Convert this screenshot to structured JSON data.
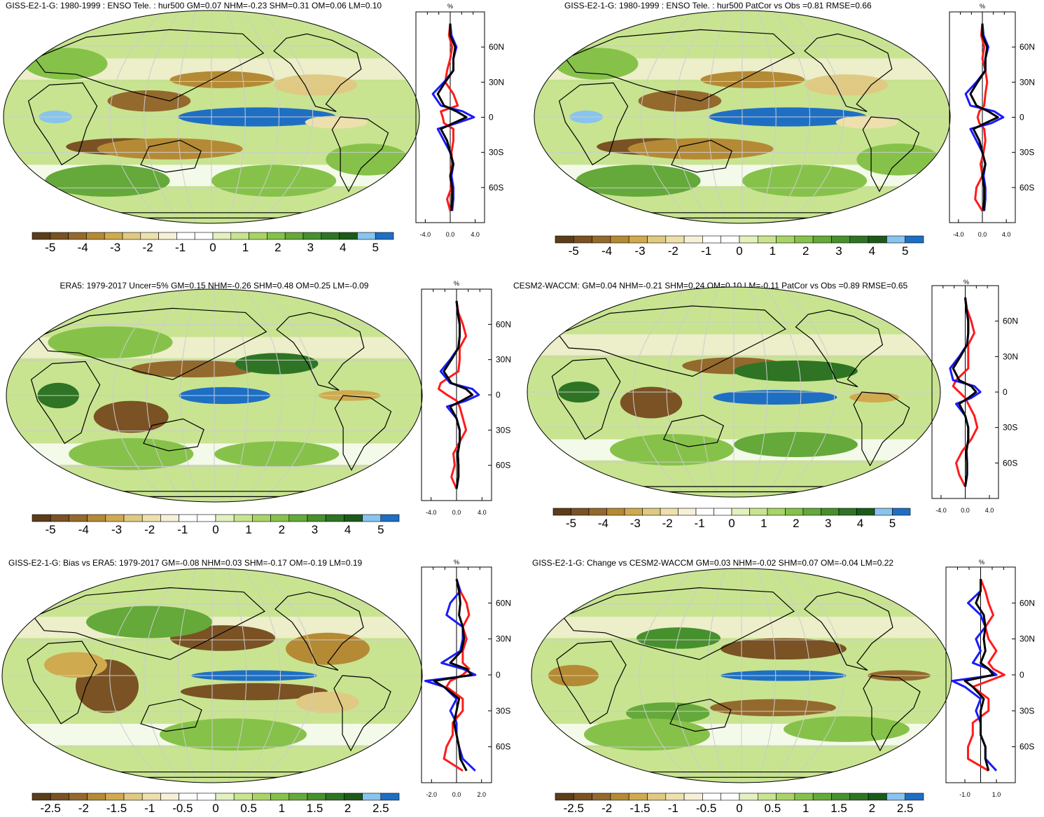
{
  "colors": {
    "continents": "#000000",
    "ocean_graticule": "#cccccc",
    "series_red": "#ff1a1a",
    "series_blue": "#1a1aff",
    "series_black": "#000000",
    "palette": [
      "#5c3d1a",
      "#7a5224",
      "#94692d",
      "#b58a35",
      "#cfaa4f",
      "#e0c982",
      "#ede0ad",
      "#f6f0d8",
      "#ffffff",
      "#ffffff",
      "#e3f0c0",
      "#c8e490",
      "#a8d466",
      "#86c24a",
      "#64a93a",
      "#47902e",
      "#2e7424",
      "#1c5a1a",
      "#88c4ee",
      "#1e6fc4"
    ]
  },
  "panels": [
    {
      "title": "GISS-E2-1-G: 1980-1999 : ENSO Tele. : hur500 GM=0.07 NHM=-0.23 SHM=0.31 OM=0.06 LM=0.10",
      "colorbar_labels": [
        "-5",
        "-4",
        "-3",
        "-2",
        "-1",
        "0",
        "1",
        "2",
        "3",
        "4",
        "5"
      ],
      "zonal_unit": "%",
      "zonal_xticks": [
        "-4.0",
        "0.0",
        "4.0"
      ],
      "zonal_xlim": [
        -5.5,
        5.5
      ],
      "zonal_yticks": [
        "60N",
        "30N",
        "0",
        "30S",
        "60S"
      ]
    },
    {
      "title": "GISS-E2-1-G: 1980-1999 : ENSO Tele. : hur500 PatCor vs Obs =0.81 RMSE=0.66",
      "colorbar_labels": [
        "-5",
        "-4",
        "-3",
        "-2",
        "-1",
        "0",
        "1",
        "2",
        "3",
        "4",
        "5"
      ],
      "zonal_unit": "%",
      "zonal_xticks": [
        "-4.0",
        "0.0",
        "4.0"
      ],
      "zonal_xlim": [
        -5.5,
        5.5
      ],
      "zonal_yticks": [
        "60N",
        "30N",
        "0",
        "30S",
        "60S"
      ]
    },
    {
      "title": "ERA5: 1979-2017 Uncer=5% GM=0.15 NHM=-0.26 SHM=0.48 OM=0.25 LM=-0.09",
      "colorbar_labels": [
        "-5",
        "-4",
        "-3",
        "-2",
        "-1",
        "0",
        "1",
        "2",
        "3",
        "4",
        "5"
      ],
      "zonal_unit": "%",
      "zonal_xticks": [
        "-4.0",
        "0.0",
        "4.0"
      ],
      "zonal_xlim": [
        -5.5,
        5.5
      ],
      "zonal_yticks": [
        "60N",
        "30N",
        "0",
        "30S",
        "60S"
      ]
    },
    {
      "title": "CESM2-WACCM: GM=0.04 NHM=-0.21 SHM=0.24 OM=0.10 LM=-0.11 PatCor vs Obs =0.89 RMSE=0.65",
      "colorbar_labels": [
        "-5",
        "-4",
        "-3",
        "-2",
        "-1",
        "0",
        "1",
        "2",
        "3",
        "4",
        "5"
      ],
      "zonal_unit": "%",
      "zonal_xticks": [
        "-4.0",
        "0.0",
        "4.0"
      ],
      "zonal_xlim": [
        -5.5,
        5.5
      ],
      "zonal_yticks": [
        "60N",
        "30N",
        "0",
        "30S",
        "60S"
      ]
    },
    {
      "title": "GISS-E2-1-G: Bias vs ERA5: 1979-2017 GM=-0.08 NHM=0.03 SHM=-0.17 OM=-0.19 LM=0.19",
      "colorbar_labels": [
        "-2.5",
        "-2",
        "-1.5",
        "-1",
        "-0.5",
        "0",
        "0.5",
        "1",
        "1.5",
        "2",
        "2.5"
      ],
      "zonal_unit": "%",
      "zonal_xticks": [
        "-2.0",
        "0.0",
        "2.0"
      ],
      "zonal_xlim": [
        -2.8,
        2.8
      ],
      "zonal_yticks": [
        "60N",
        "30N",
        "0",
        "30S",
        "60S"
      ]
    },
    {
      "title": "GISS-E2-1-G: Change vs CESM2-WACCM GM=0.03 NHM=-0.02 SHM=0.07 OM=-0.04 LM=0.22",
      "colorbar_labels": [
        "-2.5",
        "-2",
        "-1.5",
        "-1",
        "-0.5",
        "0",
        "0.5",
        "1",
        "1.5",
        "2",
        "2.5"
      ],
      "zonal_unit": "%",
      "zonal_xticks": [
        "-1.0",
        "1.0"
      ],
      "zonal_xlim": [
        -2.2,
        2.2
      ],
      "zonal_yticks": [
        "60N",
        "30N",
        "0",
        "30S",
        "60S"
      ]
    }
  ],
  "chart_data": [
    {
      "type": "line",
      "title": "GISS-E2-1-G: 1980-1999 : ENSO Tele. : hur500 GM=0.07 NHM=-0.23 SHM=0.31 OM=0.06 LM=0.10",
      "xlabel": "%",
      "xlim": [
        -5.5,
        5.5
      ],
      "y": [
        80,
        70,
        60,
        50,
        40,
        30,
        20,
        10,
        5,
        0,
        -5,
        -10,
        -20,
        -30,
        -40,
        -50,
        -60,
        -70,
        -80
      ],
      "series": [
        {
          "color": "red",
          "values": [
            0,
            -0.2,
            0.3,
            0.0,
            -0.5,
            -0.8,
            0.5,
            1.2,
            -1.5,
            -1.2,
            -1.0,
            0.5,
            0.5,
            0.2,
            0.3,
            0.0,
            0.2,
            -0.5,
            0.0
          ]
        },
        {
          "color": "blue",
          "values": [
            0,
            0.2,
            1.0,
            0.5,
            0.5,
            -1.0,
            -2.8,
            -1.5,
            2.0,
            3.8,
            1.0,
            -2.0,
            -1.0,
            0.0,
            0.5,
            0.2,
            0.5,
            0.5,
            0.3
          ]
        },
        {
          "color": "black",
          "values": [
            0,
            0.0,
            0.8,
            0.5,
            0.5,
            -0.8,
            -2.0,
            -1.0,
            1.0,
            2.6,
            0.5,
            -1.5,
            -0.5,
            0.0,
            0.5,
            0.0,
            0.3,
            0.3,
            0.2
          ]
        }
      ]
    },
    {
      "type": "line",
      "title": "GISS-E2-1-G: 1980-1999 : ENSO Tele. : hur500 PatCor vs Obs =0.81 RMSE=0.66",
      "xlabel": "%",
      "xlim": [
        -5.5,
        5.5
      ],
      "y": [
        80,
        70,
        60,
        50,
        40,
        30,
        20,
        10,
        5,
        0,
        -5,
        -10,
        -20,
        -30,
        -40,
        -50,
        -60,
        -70,
        -80
      ],
      "series": [
        {
          "color": "red",
          "values": [
            0,
            -0.2,
            0.3,
            0.0,
            0.5,
            0.8,
            0.5,
            0.3,
            -0.5,
            -0.8,
            -0.5,
            0.3,
            0.5,
            0.2,
            -0.3,
            0.0,
            -1.0,
            -1.2,
            0.0
          ]
        },
        {
          "color": "blue",
          "values": [
            0,
            0.2,
            1.0,
            0.5,
            0.5,
            -1.0,
            -2.8,
            -2.0,
            2.0,
            3.5,
            1.5,
            -2.0,
            -1.0,
            0.0,
            0.5,
            0.2,
            0.5,
            0.5,
            0.3
          ]
        },
        {
          "color": "black",
          "values": [
            0,
            0.0,
            0.8,
            0.5,
            0.5,
            -0.8,
            -2.0,
            -1.0,
            1.0,
            2.6,
            0.5,
            -1.5,
            -0.5,
            0.0,
            0.5,
            0.0,
            0.3,
            0.3,
            0.2
          ]
        }
      ]
    },
    {
      "type": "line",
      "title": "ERA5: 1979-2017 Uncer=5% GM=0.15 NHM=-0.26 SHM=0.48 OM=0.25 LM=-0.09",
      "xlabel": "%",
      "xlim": [
        -5.5,
        5.5
      ],
      "y": [
        80,
        70,
        60,
        50,
        40,
        30,
        20,
        10,
        5,
        0,
        -5,
        -10,
        -20,
        -30,
        -40,
        -50,
        -60,
        -70,
        -80
      ],
      "series": [
        {
          "color": "red",
          "values": [
            0,
            0.3,
            1.0,
            1.5,
            0.5,
            0.5,
            0.3,
            -2.5,
            -2.8,
            -1.5,
            0.0,
            0.5,
            1.0,
            1.5,
            0.5,
            -0.5,
            -0.3,
            -0.8,
            0.0
          ]
        },
        {
          "color": "blue",
          "values": [
            0,
            0.2,
            0.5,
            0.5,
            0.3,
            -1.0,
            -2.5,
            -1.0,
            2.5,
            3.5,
            1.5,
            -1.5,
            0.0,
            0.5,
            0.5,
            0.2,
            0.3,
            0.3,
            0.0
          ]
        },
        {
          "color": "black",
          "values": [
            0,
            0.2,
            0.5,
            0.5,
            0.3,
            -0.8,
            -2.0,
            -0.8,
            1.5,
            2.5,
            0.8,
            -1.0,
            0.0,
            0.5,
            0.5,
            0.2,
            0.3,
            0.3,
            0.0
          ]
        }
      ]
    },
    {
      "type": "line",
      "title": "CESM2-WACCM: GM=0.04 NHM=-0.21 SHM=0.24 OM=0.10 LM=-0.11 PatCor vs Obs =0.89 RMSE=0.65",
      "xlabel": "%",
      "xlim": [
        -5.5,
        5.5
      ],
      "y": [
        80,
        70,
        60,
        50,
        40,
        30,
        20,
        10,
        5,
        0,
        -5,
        -10,
        -20,
        -30,
        -40,
        -50,
        -60,
        -70,
        -80
      ],
      "series": [
        {
          "color": "red",
          "values": [
            0,
            0.3,
            1.0,
            1.5,
            0.5,
            0.5,
            0.5,
            -1.5,
            -2.0,
            -1.0,
            0.0,
            0.5,
            1.5,
            2.0,
            1.0,
            -0.5,
            -1.5,
            -1.0,
            0.0
          ]
        },
        {
          "color": "blue",
          "values": [
            0,
            0.2,
            0.5,
            0.5,
            0.3,
            -1.0,
            -2.5,
            -2.0,
            1.5,
            2.5,
            1.0,
            -1.5,
            0.0,
            0.5,
            0.5,
            0.2,
            0.3,
            0.3,
            0.0
          ]
        },
        {
          "color": "black",
          "values": [
            0,
            0.2,
            0.5,
            0.5,
            0.3,
            -0.8,
            -2.0,
            -1.0,
            1.0,
            1.8,
            0.5,
            -1.0,
            0.0,
            0.5,
            0.5,
            0.2,
            0.3,
            0.3,
            0.0
          ]
        }
      ]
    },
    {
      "type": "line",
      "title": "GISS-E2-1-G: Bias vs ERA5: 1979-2017 GM=-0.08 NHM=0.03 SHM=-0.17 OM=-0.19 LM=0.19",
      "xlabel": "%",
      "xlim": [
        -2.8,
        2.8
      ],
      "y": [
        80,
        70,
        60,
        50,
        40,
        30,
        20,
        10,
        5,
        0,
        -5,
        -10,
        -20,
        -30,
        -40,
        -50,
        -60,
        -70,
        -80
      ],
      "series": [
        {
          "color": "red",
          "values": [
            0,
            0.3,
            0.8,
            1.0,
            0.5,
            0.8,
            0.5,
            0.5,
            1.0,
            0.5,
            -0.5,
            -0.8,
            0.5,
            0.5,
            -0.3,
            -0.3,
            -0.8,
            -1.0,
            0.5
          ]
        },
        {
          "color": "blue",
          "values": [
            0,
            0.3,
            -0.5,
            -0.8,
            0.5,
            0.5,
            0.3,
            -1.2,
            0.5,
            1.5,
            -2.5,
            -1.0,
            0.0,
            -0.5,
            0.0,
            0.0,
            0.2,
            0.5,
            1.5
          ]
        },
        {
          "color": "black",
          "values": [
            0,
            0.2,
            0.3,
            0.2,
            0.5,
            0.6,
            0.4,
            -0.5,
            0.8,
            1.2,
            -1.8,
            -1.0,
            0.2,
            0.0,
            -0.2,
            0.0,
            0.2,
            0.3,
            0.8
          ]
        }
      ]
    },
    {
      "type": "line",
      "title": "GISS-E2-1-G: Change vs CESM2-WACCM GM=0.03 NHM=-0.02 SHM=0.07 OM=-0.04 LM=0.22",
      "xlabel": "%",
      "xlim": [
        -2.2,
        2.2
      ],
      "y": [
        80,
        70,
        60,
        50,
        40,
        30,
        20,
        10,
        5,
        0,
        -5,
        -10,
        -20,
        -30,
        -40,
        -50,
        -60,
        -70,
        -80
      ],
      "series": [
        {
          "color": "red",
          "values": [
            0,
            0.3,
            0.5,
            0.8,
            0.3,
            0.5,
            1.0,
            0.5,
            0.8,
            1.5,
            0.5,
            -0.5,
            0.5,
            0.5,
            -0.5,
            -0.5,
            -0.8,
            -0.8,
            0.5
          ]
        },
        {
          "color": "blue",
          "values": [
            0,
            0.0,
            -0.8,
            0.0,
            0.3,
            -0.3,
            0.0,
            -0.5,
            0.5,
            1.0,
            -1.8,
            -1.0,
            0.0,
            -0.3,
            0.0,
            0.0,
            0.3,
            0.3,
            1.0
          ]
        },
        {
          "color": "black",
          "values": [
            0,
            0.0,
            -0.3,
            0.2,
            0.3,
            0.2,
            0.3,
            0.0,
            0.5,
            0.8,
            -1.0,
            -0.5,
            0.2,
            0.0,
            0.0,
            0.0,
            0.3,
            0.3,
            0.5
          ]
        }
      ]
    }
  ]
}
